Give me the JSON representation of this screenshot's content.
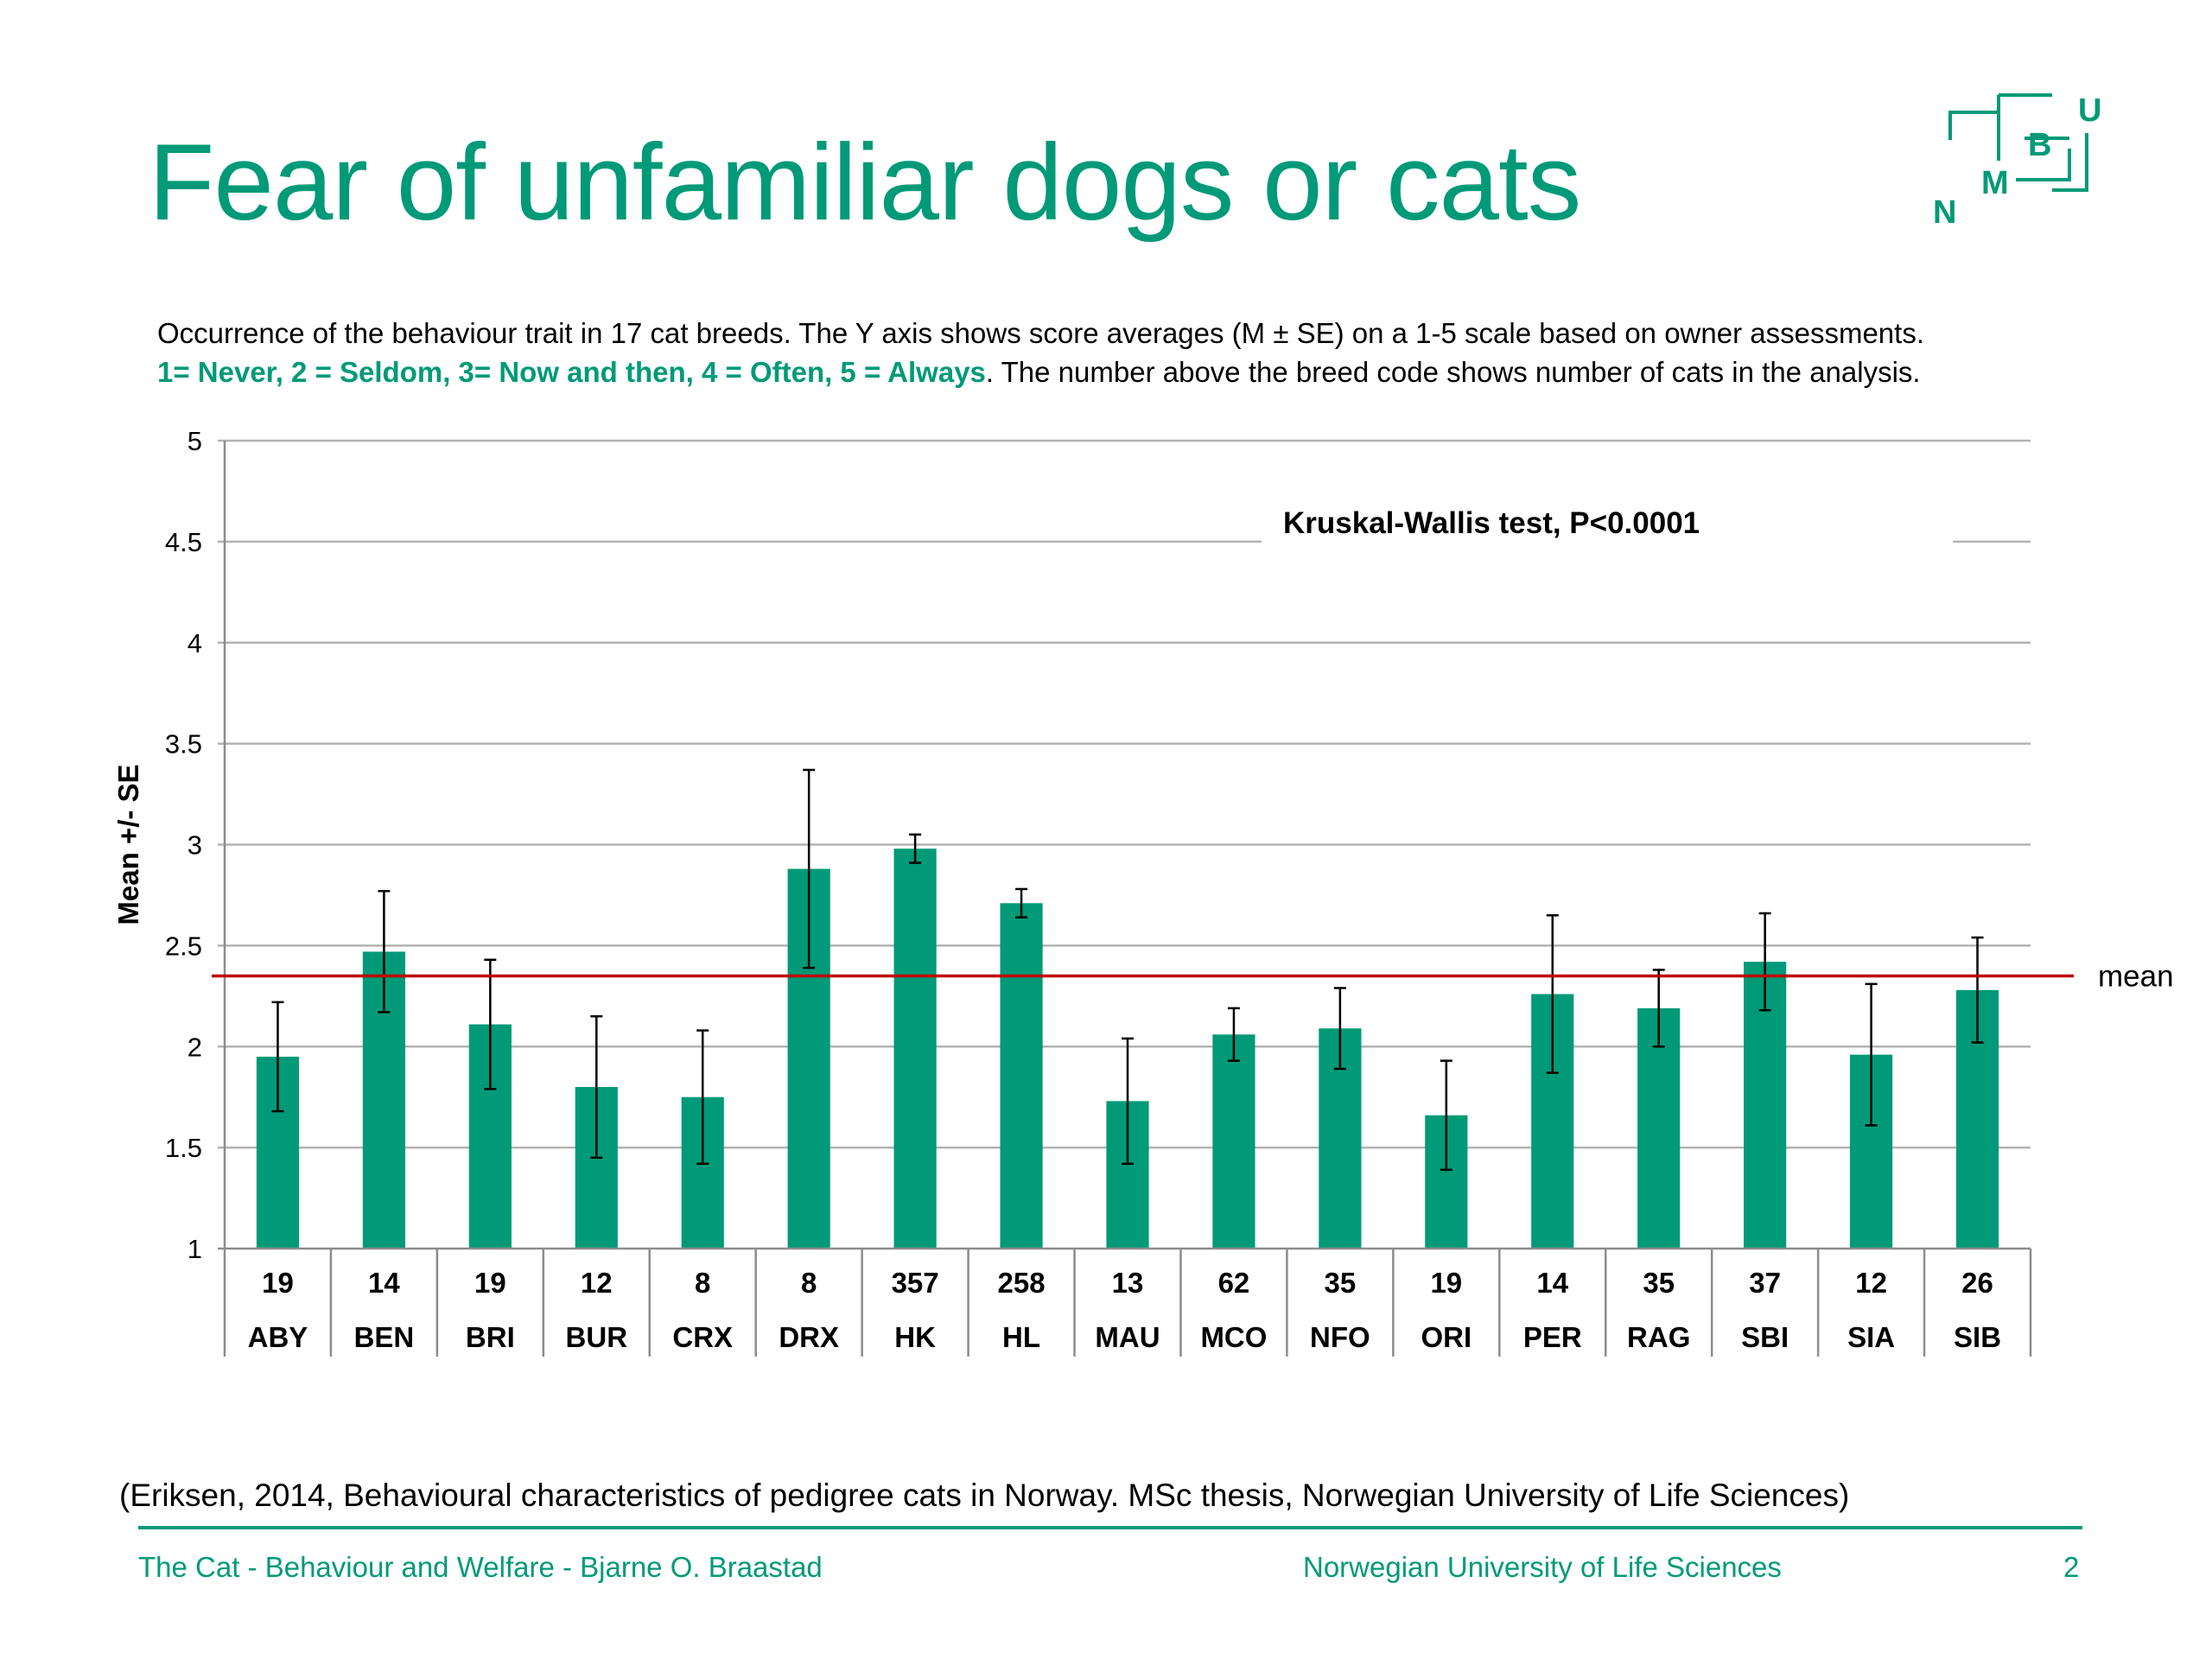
{
  "slide": {
    "title": "Fear of unfamiliar dogs or cats",
    "subtitle_line1": "Occurrence of the behaviour trait in 17 cat breeds. The Y axis shows score averages (M ± SE) on a 1-5 scale based on owner assessments.",
    "subtitle_scale": "1= Never, 2 = Seldom, 3= Now and then, 4 = Often, 5 = Always",
    "subtitle_rest": ". The number above the breed code shows number of cats in the analysis.",
    "citation": "(Eriksen, 2014, Behavioural characteristics of pedigree cats in Norway. MSc thesis, Norwegian University of Life Sciences)",
    "footer_left": "The Cat - Behaviour and Welfare - Bjarne O. Braastad",
    "footer_middle": "Norwegian University of Life Sciences",
    "page_number": "2",
    "logo_letters": [
      "N",
      "M",
      "B",
      "U"
    ]
  },
  "colors": {
    "accent": "#009a78",
    "bar": "#009a78",
    "mean_line": "#c00000",
    "grid": "#b3b3b3",
    "axis": "#8c8c8c"
  },
  "chart_data": {
    "type": "bar",
    "ylabel": "Mean +/- SE",
    "ylim": [
      1,
      5
    ],
    "yticks": [
      "1",
      "1.5",
      "2",
      "2.5",
      "3",
      "3.5",
      "4",
      "4.5",
      "5"
    ],
    "grid": true,
    "annotation": "Kruskal-Wallis test, P<0.0001",
    "mean_label": "mean",
    "mean_value": 2.35,
    "categories": [
      "ABY",
      "BEN",
      "BRI",
      "BUR",
      "CRX",
      "DRX",
      "HK",
      "HL",
      "MAU",
      "MCO",
      "NFO",
      "ORI",
      "PER",
      "RAG",
      "SBI",
      "SIA",
      "SIB"
    ],
    "counts": [
      "19",
      "14",
      "19",
      "12",
      "8",
      "8",
      "357",
      "258",
      "13",
      "62",
      "35",
      "19",
      "14",
      "35",
      "37",
      "12",
      "26"
    ],
    "values": [
      1.95,
      2.47,
      2.11,
      1.8,
      1.75,
      2.88,
      2.98,
      2.71,
      1.73,
      2.06,
      2.09,
      1.66,
      2.26,
      2.19,
      2.42,
      1.96,
      2.28
    ],
    "se": [
      0.27,
      0.3,
      0.32,
      0.35,
      0.33,
      0.49,
      0.07,
      0.07,
      0.31,
      0.13,
      0.2,
      0.27,
      0.39,
      0.19,
      0.24,
      0.35,
      0.26
    ]
  }
}
